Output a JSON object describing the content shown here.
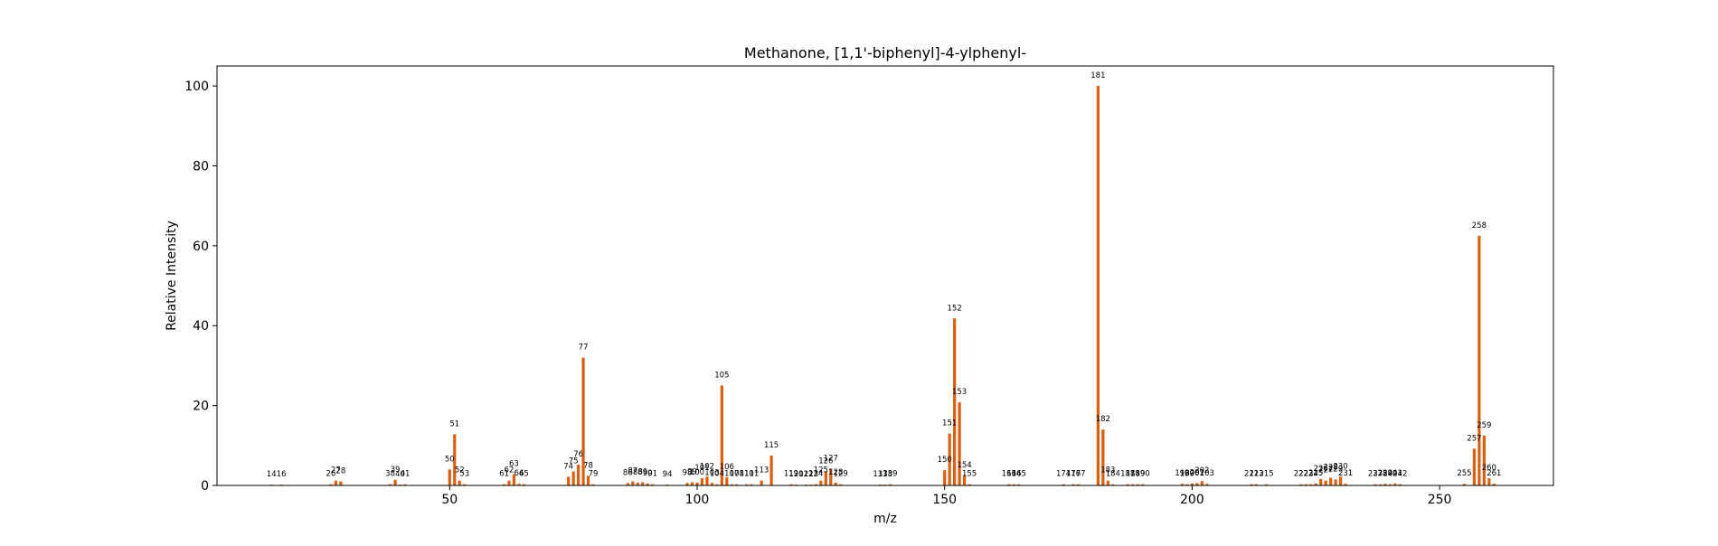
{
  "chart_data": {
    "type": "bar",
    "title": "Methanone, [1,1'-biphenyl]-4-ylphenyl-",
    "xlabel": "m/z",
    "ylabel": "Relative Intensity",
    "xlim": [
      3,
      273
    ],
    "ylim": [
      0,
      105
    ],
    "xticks": [
      50,
      100,
      150,
      200,
      250
    ],
    "yticks": [
      0,
      20,
      40,
      60,
      80,
      100
    ],
    "grid": false,
    "bar_color": "#d95f0e",
    "x": [
      14,
      16,
      26,
      27,
      28,
      38,
      39,
      40,
      41,
      50,
      51,
      52,
      53,
      61,
      62,
      63,
      64,
      65,
      74,
      75,
      76,
      77,
      78,
      79,
      86,
      87,
      88,
      89,
      90,
      91,
      94,
      98,
      99,
      100,
      101,
      102,
      103,
      104,
      105,
      106,
      107,
      108,
      110,
      111,
      113,
      115,
      119,
      120,
      122,
      123,
      124,
      125,
      126,
      127,
      128,
      129,
      137,
      138,
      139,
      150,
      151,
      152,
      153,
      154,
      155,
      163,
      164,
      165,
      174,
      176,
      177,
      181,
      182,
      183,
      184,
      187,
      188,
      189,
      190,
      198,
      199,
      200,
      201,
      202,
      203,
      212,
      213,
      215,
      222,
      223,
      224,
      225,
      226,
      227,
      228,
      229,
      230,
      231,
      237,
      238,
      239,
      240,
      241,
      242,
      255,
      257,
      258,
      259,
      260,
      261
    ],
    "values": [
      0.2,
      0.2,
      0.3,
      1.2,
      1.0,
      0.3,
      1.4,
      0.2,
      0.3,
      4.0,
      12.8,
      1.2,
      0.3,
      0.3,
      1.2,
      2.8,
      0.4,
      0.3,
      2.2,
      3.5,
      5.2,
      32.0,
      2.4,
      0.3,
      0.6,
      1.0,
      0.7,
      0.8,
      0.5,
      0.3,
      0.2,
      0.6,
      0.8,
      0.7,
      1.8,
      2.2,
      0.6,
      0.3,
      25.0,
      2.0,
      0.3,
      0.3,
      0.3,
      0.3,
      1.2,
      7.5,
      0.3,
      0.2,
      0.2,
      0.2,
      0.3,
      1.2,
      3.5,
      4.2,
      0.7,
      0.3,
      0.2,
      0.2,
      0.3,
      3.8,
      13.0,
      41.8,
      20.8,
      2.5,
      0.3,
      0.3,
      0.3,
      0.3,
      0.3,
      0.3,
      0.3,
      100.0,
      14.0,
      1.2,
      0.3,
      0.3,
      0.3,
      0.3,
      0.3,
      0.4,
      0.3,
      0.5,
      0.6,
      1.1,
      0.4,
      0.3,
      0.3,
      0.3,
      0.3,
      0.3,
      0.3,
      0.5,
      1.6,
      1.2,
      1.9,
      1.5,
      2.2,
      0.4,
      0.3,
      0.3,
      0.4,
      0.3,
      0.5,
      0.3,
      0.4,
      9.2,
      62.5,
      12.5,
      1.8,
      0.4
    ]
  }
}
